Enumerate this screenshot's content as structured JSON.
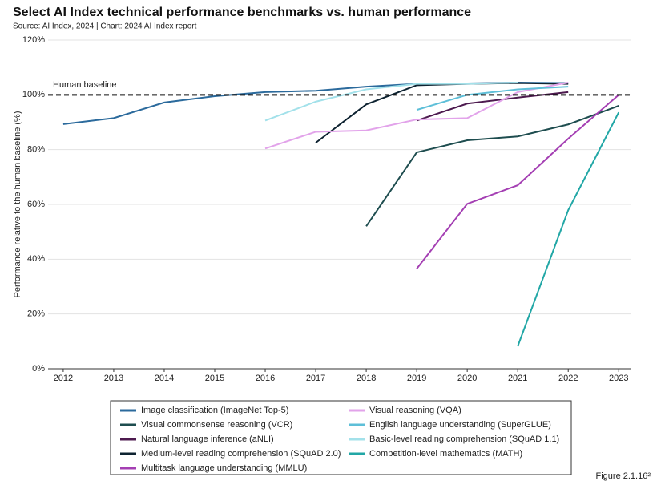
{
  "chart_data": {
    "type": "line",
    "title": "Select AI Index technical performance benchmarks vs. human performance",
    "subtitle": "Source: AI Index, 2024 | Chart: 2024 AI Index report",
    "y_label": "Performance relative to the human baseline (%)",
    "figure_label": "Figure 2.1.16²",
    "x": [
      2012,
      2013,
      2014,
      2015,
      2016,
      2017,
      2018,
      2019,
      2020,
      2021,
      2022,
      2023
    ],
    "xlim": [
      2011.7,
      2023.25
    ],
    "xticks": [
      2012,
      2013,
      2014,
      2015,
      2016,
      2017,
      2018,
      2019,
      2020,
      2021,
      2022,
      2023
    ],
    "ylim": [
      0,
      120
    ],
    "yticks": [
      {
        "value": 0,
        "label": "0%"
      },
      {
        "value": 20,
        "label": "20%"
      },
      {
        "value": 40,
        "label": "40%"
      },
      {
        "value": 60,
        "label": "60%"
      },
      {
        "value": 80,
        "label": "80%"
      },
      {
        "value": 100,
        "label": "100%"
      },
      {
        "value": 120,
        "label": "120%"
      }
    ],
    "grid": true,
    "baseline": {
      "value": 100,
      "label": "Human baseline"
    },
    "series": [
      {
        "name": "Image classification (ImageNet Top-5)",
        "color": "#2b6a9c",
        "values": [
          89.3,
          91.5,
          97.2,
          99.5,
          101,
          101.5,
          103,
          104,
          104.2,
          104.5,
          104.3,
          null
        ]
      },
      {
        "name": "Visual commonsense reasoning (VCR)",
        "color": "#1e4d4f",
        "values": [
          null,
          null,
          null,
          null,
          null,
          null,
          52,
          79,
          83.4,
          84.8,
          89.2,
          96
        ]
      },
      {
        "name": "Natural language inference (aNLI)",
        "color": "#4d1a4f",
        "values": [
          null,
          null,
          null,
          null,
          null,
          null,
          null,
          90.6,
          96.8,
          99,
          101,
          null
        ]
      },
      {
        "name": "Medium-level reading comprehension (SQuAD 2.0)",
        "color": "#0e2331",
        "values": [
          null,
          null,
          null,
          null,
          null,
          82.5,
          96.5,
          103.5,
          104,
          104.3,
          104,
          null
        ]
      },
      {
        "name": "Multitask language understanding (MMLU)",
        "color": "#a43fb3",
        "values": [
          null,
          null,
          null,
          null,
          null,
          null,
          null,
          36.5,
          60.2,
          67,
          84,
          100
        ]
      },
      {
        "name": "Visual reasoning (VQA)",
        "color": "#e2a3ea",
        "values": [
          null,
          null,
          null,
          null,
          80.4,
          86.5,
          87,
          91,
          91.5,
          101,
          104.5,
          null
        ]
      },
      {
        "name": "English language understanding (SuperGLUE)",
        "color": "#5ebfd8",
        "values": [
          null,
          null,
          null,
          null,
          null,
          null,
          null,
          94.5,
          100,
          102,
          103,
          null
        ]
      },
      {
        "name": "Basic-level reading comprehension (SQuAD 1.1)",
        "color": "#a3e1ea",
        "values": [
          null,
          null,
          null,
          null,
          90.6,
          97.5,
          102,
          104,
          104,
          104.5,
          null,
          null
        ]
      },
      {
        "name": "Competition-level mathematics (MATH)",
        "color": "#22a7a6",
        "values": [
          null,
          null,
          null,
          null,
          null,
          null,
          null,
          null,
          null,
          8.2,
          57.9,
          93.6
        ]
      }
    ]
  }
}
